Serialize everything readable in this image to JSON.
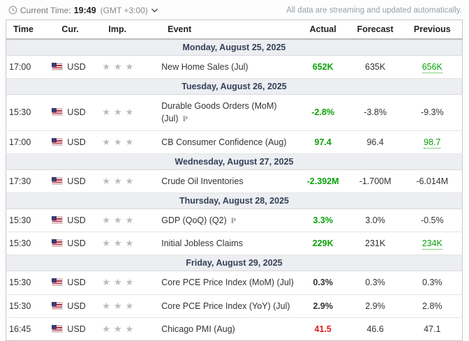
{
  "colors": {
    "green": "#0aa10a",
    "red": "#e21717",
    "section_bg": "#eceef1",
    "date_text": "#36405a"
  },
  "topbar": {
    "current_time_label": "Current Time:",
    "current_time": "19:49",
    "timezone": "(GMT +3:00)",
    "streaming_note": "All data are streaming and updated automatically."
  },
  "table": {
    "headers": [
      "Time",
      "Cur.",
      "Imp.",
      "Event",
      "Actual",
      "Forecast",
      "Previous"
    ],
    "sections": [
      {
        "date": "Monday, August 25, 2025",
        "rows": [
          {
            "time": "17:00",
            "currency": "USD",
            "importance": 3,
            "event": "New Home Sales (Jul)",
            "preliminary": false,
            "actual": "652K",
            "actual_color": "green",
            "forecast": "635K",
            "previous": "656K",
            "previous_style": "green-underline"
          }
        ]
      },
      {
        "date": "Tuesday, August 26, 2025",
        "rows": [
          {
            "time": "15:30",
            "currency": "USD",
            "importance": 3,
            "event": "Durable Goods Orders (MoM) (Jul)",
            "preliminary": true,
            "actual": "-2.8%",
            "actual_color": "green",
            "forecast": "-3.8%",
            "previous": "-9.3%",
            "previous_style": "plain"
          },
          {
            "time": "17:00",
            "currency": "USD",
            "importance": 3,
            "event": "CB Consumer Confidence (Aug)",
            "preliminary": false,
            "actual": "97.4",
            "actual_color": "green",
            "forecast": "96.4",
            "previous": "98.7",
            "previous_style": "green-underline"
          }
        ]
      },
      {
        "date": "Wednesday, August 27, 2025",
        "rows": [
          {
            "time": "17:30",
            "currency": "USD",
            "importance": 3,
            "event": "Crude Oil Inventories",
            "preliminary": false,
            "actual": "-2.392M",
            "actual_color": "green",
            "forecast": "-1.700M",
            "previous": "-6.014M",
            "previous_style": "plain"
          }
        ]
      },
      {
        "date": "Thursday, August 28, 2025",
        "rows": [
          {
            "time": "15:30",
            "currency": "USD",
            "importance": 3,
            "event": "GDP (QoQ) (Q2)",
            "preliminary": true,
            "actual": "3.3%",
            "actual_color": "green",
            "forecast": "3.0%",
            "previous": "-0.5%",
            "previous_style": "plain"
          },
          {
            "time": "15:30",
            "currency": "USD",
            "importance": 3,
            "event": "Initial Jobless Claims",
            "preliminary": false,
            "actual": "229K",
            "actual_color": "green",
            "forecast": "231K",
            "previous": "234K",
            "previous_style": "green-underline"
          }
        ]
      },
      {
        "date": "Friday, August 29, 2025",
        "rows": [
          {
            "time": "15:30",
            "currency": "USD",
            "importance": 3,
            "event": "Core PCE Price Index (MoM) (Jul)",
            "preliminary": false,
            "actual": "0.3%",
            "actual_color": "neutral",
            "forecast": "0.3%",
            "previous": "0.3%",
            "previous_style": "plain"
          },
          {
            "time": "15:30",
            "currency": "USD",
            "importance": 3,
            "event": "Core PCE Price Index (YoY) (Jul)",
            "preliminary": false,
            "actual": "2.9%",
            "actual_color": "neutral",
            "forecast": "2.9%",
            "previous": "2.8%",
            "previous_style": "plain"
          },
          {
            "time": "16:45",
            "currency": "USD",
            "importance": 3,
            "event": "Chicago PMI (Aug)",
            "preliminary": false,
            "actual": "41.5",
            "actual_color": "red",
            "forecast": "46.6",
            "previous": "47.1",
            "previous_style": "plain"
          }
        ]
      }
    ]
  }
}
